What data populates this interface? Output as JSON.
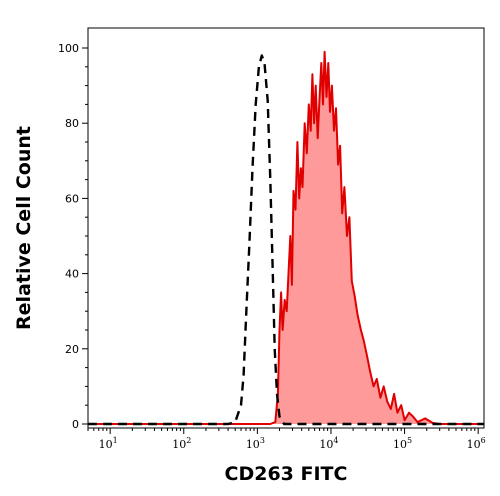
{
  "chart_data": {
    "type": "area",
    "xlabel": "CD263 FITC",
    "ylabel": "Relative Cell Count",
    "x_scale": "log",
    "xlim": [
      5,
      1200000
    ],
    "ylim": [
      0,
      105
    ],
    "x_ticks": [
      {
        "base": "10",
        "exp": "1",
        "value": 10
      },
      {
        "base": "10",
        "exp": "2",
        "value": 100
      },
      {
        "base": "10",
        "exp": "3",
        "value": 1000
      },
      {
        "base": "10",
        "exp": "4",
        "value": 10000
      },
      {
        "base": "10",
        "exp": "5",
        "value": 100000
      },
      {
        "base": "10",
        "exp": "6",
        "value": 1000000
      }
    ],
    "y_ticks": [
      {
        "label": "0",
        "value": 0
      },
      {
        "label": "20",
        "value": 20
      },
      {
        "label": "40",
        "value": 40
      },
      {
        "label": "60",
        "value": 60
      },
      {
        "label": "80",
        "value": 80
      },
      {
        "label": "100",
        "value": 100
      }
    ],
    "grid": false,
    "series": [
      {
        "style": "dashed",
        "color": "#000000",
        "fill": "none",
        "points": [
          [
            5,
            0
          ],
          [
            400,
            0
          ],
          [
            500,
            0.5
          ],
          [
            600,
            5
          ],
          [
            650,
            13
          ],
          [
            700,
            28
          ],
          [
            780,
            48
          ],
          [
            860,
            68
          ],
          [
            950,
            85
          ],
          [
            1050,
            95
          ],
          [
            1150,
            98
          ],
          [
            1250,
            96
          ],
          [
            1380,
            86
          ],
          [
            1500,
            65
          ],
          [
            1620,
            40
          ],
          [
            1720,
            20
          ],
          [
            1850,
            8
          ],
          [
            2000,
            2
          ],
          [
            2300,
            0
          ],
          [
            1200000,
            0
          ]
        ]
      },
      {
        "style": "solid",
        "color": "#e00000",
        "fill": "#ff9a9a",
        "points": [
          [
            5,
            0
          ],
          [
            1500,
            0
          ],
          [
            1750,
            0.5
          ],
          [
            1900,
            8
          ],
          [
            2000,
            25
          ],
          [
            2100,
            35
          ],
          [
            2200,
            25
          ],
          [
            2350,
            33
          ],
          [
            2500,
            30
          ],
          [
            2650,
            40
          ],
          [
            2800,
            50
          ],
          [
            2950,
            37
          ],
          [
            3100,
            62
          ],
          [
            3300,
            57
          ],
          [
            3500,
            75
          ],
          [
            3700,
            60
          ],
          [
            3900,
            68
          ],
          [
            4100,
            63
          ],
          [
            4400,
            80
          ],
          [
            4700,
            72
          ],
          [
            5000,
            85
          ],
          [
            5300,
            78
          ],
          [
            5600,
            93
          ],
          [
            5900,
            80
          ],
          [
            6200,
            90
          ],
          [
            6600,
            76
          ],
          [
            7000,
            87
          ],
          [
            7400,
            96
          ],
          [
            7800,
            85
          ],
          [
            8200,
            99
          ],
          [
            8700,
            87
          ],
          [
            9200,
            96
          ],
          [
            9700,
            83
          ],
          [
            10300,
            90
          ],
          [
            11000,
            78
          ],
          [
            11700,
            84
          ],
          [
            12500,
            69
          ],
          [
            13300,
            74
          ],
          [
            14200,
            56
          ],
          [
            15200,
            63
          ],
          [
            16500,
            50
          ],
          [
            17800,
            55
          ],
          [
            19200,
            38
          ],
          [
            21000,
            34
          ],
          [
            23000,
            29
          ],
          [
            25500,
            25
          ],
          [
            28000,
            22
          ],
          [
            31000,
            18
          ],
          [
            34000,
            14
          ],
          [
            38000,
            10
          ],
          [
            42000,
            12
          ],
          [
            47000,
            7
          ],
          [
            52000,
            10
          ],
          [
            58000,
            6
          ],
          [
            65000,
            4
          ],
          [
            72000,
            8
          ],
          [
            80000,
            3
          ],
          [
            90000,
            5
          ],
          [
            100000,
            1
          ],
          [
            115000,
            3
          ],
          [
            130000,
            2
          ],
          [
            150000,
            0.5
          ],
          [
            190000,
            1.5
          ],
          [
            240000,
            0.3
          ],
          [
            300000,
            0
          ],
          [
            1200000,
            0
          ]
        ]
      }
    ]
  }
}
